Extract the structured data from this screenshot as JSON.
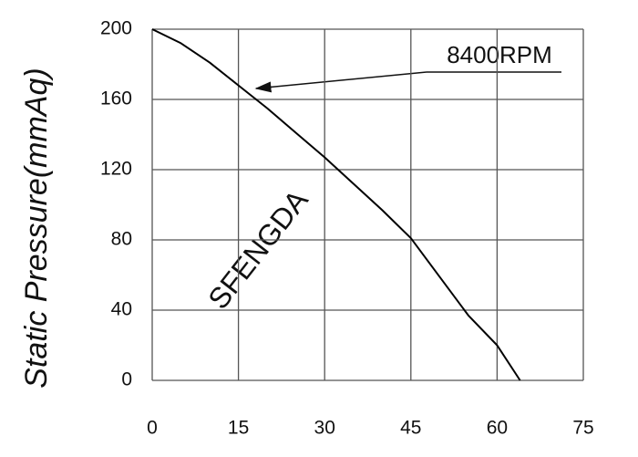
{
  "chart_data": {
    "type": "line",
    "y_label": "Static Pressure(mmAq)",
    "watermark": "SFENGDA",
    "x": [
      0,
      5,
      10,
      15,
      20,
      25,
      30,
      35,
      40,
      45,
      50,
      55,
      60,
      64
    ],
    "series": [
      {
        "name": "8400RPM",
        "color": "#000000",
        "values": [
          200,
          192,
          181,
          168,
          155,
          141,
          127,
          112,
          97,
          81,
          59,
          37,
          20,
          0
        ]
      }
    ],
    "xlim": [
      0,
      75
    ],
    "xticks": [
      0,
      15,
      30,
      45,
      60,
      75
    ],
    "ylim": [
      0,
      200
    ],
    "yticks": [
      0,
      40,
      80,
      120,
      160,
      200
    ],
    "grid": true
  }
}
